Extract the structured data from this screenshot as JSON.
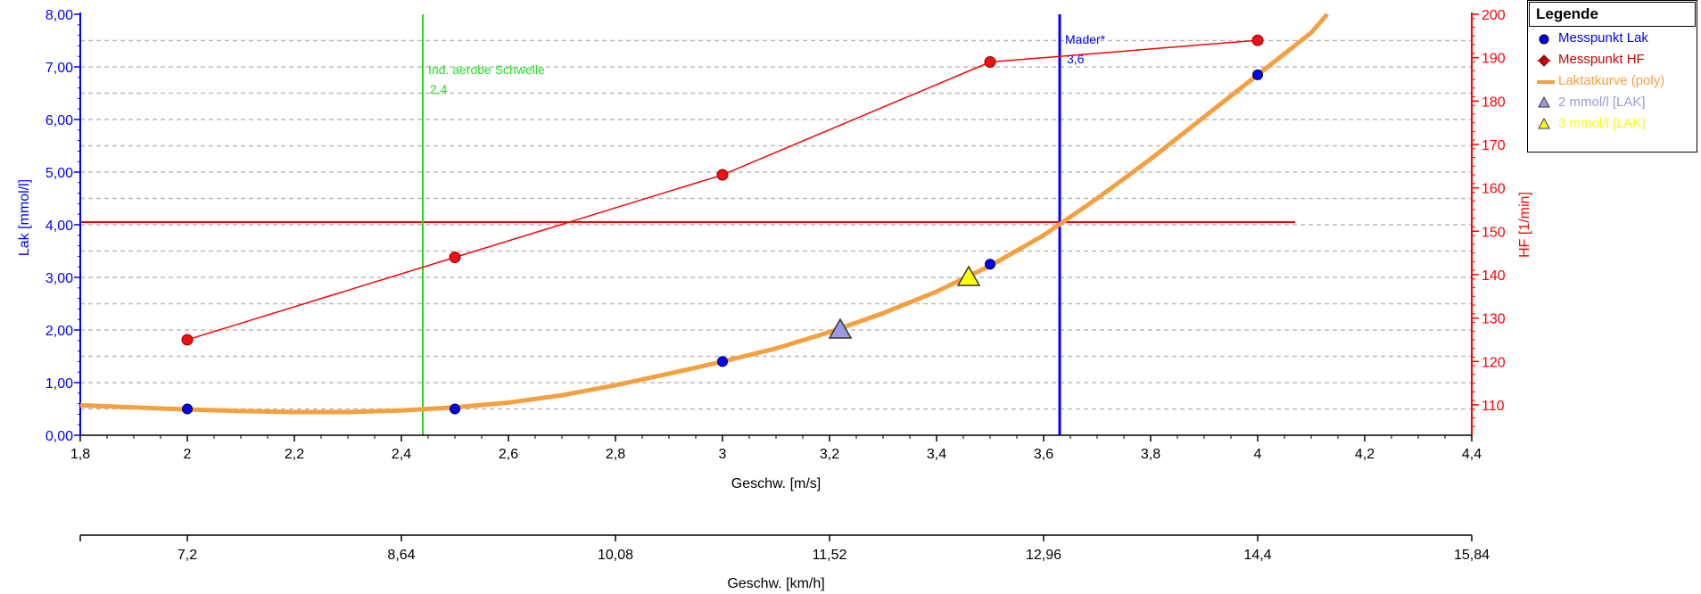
{
  "colors": {
    "lak": "#0000ff",
    "hf": "#ff0000",
    "curve": "#f5a040",
    "threshold_aerobic": "#22dd22",
    "mader": "#0000ff",
    "tri2": "#9a9ae0",
    "tri3": "#ffff00",
    "grid": "#bbbbbb"
  },
  "legend": {
    "title": "Legende",
    "items": [
      {
        "label": "Messpunkt Lak",
        "color": "#0000ff",
        "symbol": "circle"
      },
      {
        "label": "Messpunkt HF",
        "color": "#cc0000",
        "symbol": "diamond"
      },
      {
        "label": "Laktatkurve (poly)",
        "color": "#f5a040",
        "symbol": "line"
      },
      {
        "label": "2 mmol/l [LAK]",
        "color": "#9a9ae0",
        "symbol": "triangle"
      },
      {
        "label": "3 mmol/l [LAK]",
        "color": "#ffff00",
        "symbol": "triangle"
      }
    ]
  },
  "chart_data": {
    "type": "line",
    "xlabel": "Geschw. [m/s]",
    "xlabel2": "Geschw. [km/h]",
    "ylabel_left": "Lak [mmol/l]",
    "ylabel_right": "HF [1/min]",
    "xlim": [
      1.8,
      4.4
    ],
    "ylim_left": [
      0,
      8
    ],
    "ylim_right": [
      103,
      200
    ],
    "x_ticks": [
      "1,8",
      "2",
      "2,2",
      "2,4",
      "2,6",
      "2,8",
      "3",
      "3,2",
      "3,4",
      "3,6",
      "3,8",
      "4",
      "4,2",
      "4,4"
    ],
    "x_tick_values": [
      1.8,
      2.0,
      2.2,
      2.4,
      2.6,
      2.8,
      3.0,
      3.2,
      3.4,
      3.6,
      3.8,
      4.0,
      4.2,
      4.4
    ],
    "x2_ticks": [
      "7,2",
      "8,64",
      "10,08",
      "11,52",
      "12,96",
      "14,4",
      "15,84"
    ],
    "x2_tick_values": [
      2.0,
      2.4,
      2.8,
      3.2,
      3.6,
      4.0,
      4.4
    ],
    "y_left_ticks": [
      "0,00",
      "1,00",
      "2,00",
      "3,00",
      "4,00",
      "5,00",
      "6,00",
      "7,00",
      "8,00"
    ],
    "y_left_tick_values": [
      0,
      1,
      2,
      3,
      4,
      5,
      6,
      7,
      8
    ],
    "y_right_ticks": [
      "110",
      "120",
      "130",
      "140",
      "150",
      "160",
      "170",
      "180",
      "190",
      "200"
    ],
    "y_right_tick_values": [
      110,
      120,
      130,
      140,
      150,
      160,
      170,
      180,
      190,
      200
    ],
    "series": [
      {
        "name": "Messpunkt Lak",
        "axis": "left",
        "x": [
          2.0,
          2.5,
          3.0,
          3.5,
          4.0
        ],
        "y": [
          0.5,
          0.5,
          1.4,
          3.25,
          6.85
        ]
      },
      {
        "name": "Messpunkt HF",
        "axis": "right",
        "x": [
          2.0,
          2.5,
          3.0,
          3.5,
          4.0
        ],
        "y": [
          125,
          144,
          163,
          189,
          194
        ]
      },
      {
        "name": "Laktatkurve (poly)",
        "axis": "left",
        "x": [
          1.8,
          1.9,
          2.0,
          2.1,
          2.2,
          2.3,
          2.4,
          2.5,
          2.6,
          2.7,
          2.8,
          2.9,
          3.0,
          3.1,
          3.2,
          3.3,
          3.4,
          3.5,
          3.6,
          3.7,
          3.8,
          3.9,
          4.0,
          4.1,
          4.13
        ],
        "y": [
          0.57,
          0.53,
          0.49,
          0.46,
          0.44,
          0.44,
          0.47,
          0.53,
          0.62,
          0.76,
          0.95,
          1.17,
          1.4,
          1.65,
          1.96,
          2.32,
          2.73,
          3.22,
          3.8,
          4.5,
          5.25,
          6.05,
          6.85,
          7.65,
          8.0
        ]
      }
    ],
    "markers": [
      {
        "label": "2 mmol/l [LAK]",
        "x": 3.22,
        "y": 2.0
      },
      {
        "label": "3 mmol/l [LAK]",
        "x": 3.46,
        "y": 3.0
      }
    ],
    "hline": {
      "axis": "left",
      "y": 4.05,
      "x_end": 4.07
    },
    "vlines": [
      {
        "name": "Ind. aerobe Schwelle",
        "x": 2.44,
        "label": "Ind. aerobe Schwelle",
        "value_label": "2,4"
      },
      {
        "name": "Mader",
        "x": 3.63,
        "label": "Mader*",
        "value_label": "3,6"
      }
    ]
  }
}
